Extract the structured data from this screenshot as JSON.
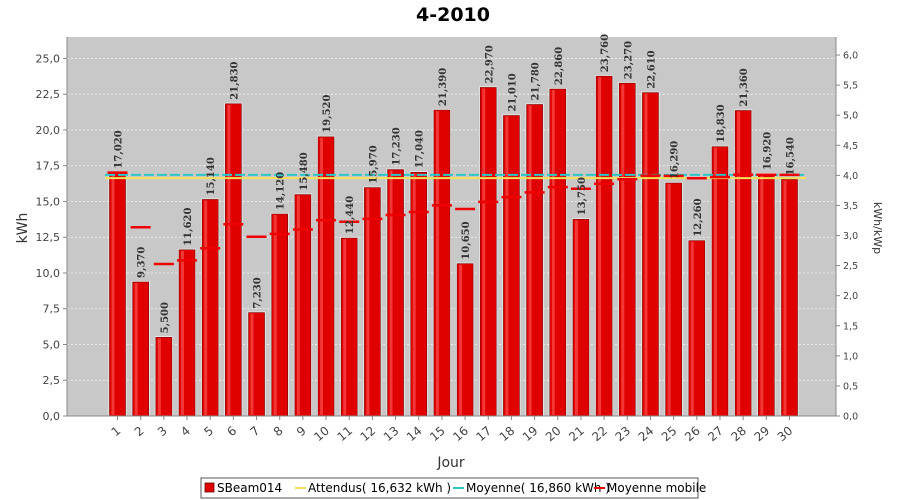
{
  "chart_data": {
    "type": "bar",
    "title": "4-2010",
    "xlabel": "Jour",
    "ylabel": "kWh",
    "y2label": "kWh/kWp",
    "categories": [
      "1",
      "2",
      "3",
      "4",
      "5",
      "6",
      "7",
      "8",
      "9",
      "10",
      "11",
      "12",
      "13",
      "14",
      "15",
      "16",
      "17",
      "18",
      "19",
      "20",
      "21",
      "22",
      "23",
      "24",
      "25",
      "26",
      "27",
      "28",
      "29",
      "30"
    ],
    "ylim": [
      0,
      26.5
    ],
    "y_ticks": [
      "0,0",
      "2,5",
      "5,0",
      "7,5",
      "10,0",
      "12,5",
      "15,0",
      "17,5",
      "20,0",
      "22,5",
      "25,0"
    ],
    "y2lim": [
      0,
      6.3
    ],
    "y2_ticks": [
      "0,0",
      "0,5",
      "1,0",
      "1,5",
      "2,0",
      "2,5",
      "3,0",
      "3,5",
      "4,0",
      "4,5",
      "5,0",
      "5,5",
      "6,0"
    ],
    "series": [
      {
        "name": "SBeam014",
        "kind": "bar",
        "color": "#e00000",
        "values": [
          17.02,
          9.37,
          5.5,
          11.62,
          15.14,
          21.83,
          7.23,
          14.12,
          15.48,
          19.52,
          12.44,
          15.97,
          17.23,
          17.04,
          21.39,
          10.65,
          22.97,
          21.01,
          21.78,
          22.86,
          13.75,
          23.76,
          23.27,
          22.61,
          16.29,
          12.26,
          18.83,
          21.36,
          16.92,
          16.54
        ],
        "labels": [
          "17,020",
          "9,370",
          "5,500",
          "11,620",
          "15,140",
          "21,830",
          "7,230",
          "14,120",
          "15,480",
          "19,520",
          "12,440",
          "15,970",
          "17,230",
          "17,040",
          "21,390",
          "10,650",
          "22,970",
          "21,010",
          "21,780",
          "22,860",
          "13,750",
          "23,760",
          "23,270",
          "22,610",
          "16,290",
          "12,260",
          "18,830",
          "21,360",
          "16,920",
          "16,540"
        ]
      },
      {
        "name": "Attendus( 16,632 kWh )",
        "kind": "line",
        "color": "#f2e25a",
        "value": 16.632
      },
      {
        "name": "Moyenne( 16,860 kWh )",
        "kind": "line",
        "color": "#2cc6c6",
        "value": 16.86
      },
      {
        "name": "Moyenne mobile",
        "kind": "step",
        "color": "#ee0000",
        "values": [
          17.02,
          13.2,
          10.63,
          10.88,
          11.73,
          13.41,
          12.53,
          12.73,
          13.04,
          13.69,
          13.58,
          13.78,
          14.05,
          14.26,
          14.73,
          14.47,
          14.97,
          15.3,
          15.64,
          16.0,
          15.89,
          16.24,
          16.55,
          16.81,
          16.79,
          16.62,
          16.7,
          16.87,
          16.87,
          16.86
        ]
      }
    ],
    "legend_position": "bottom",
    "grid": true
  }
}
